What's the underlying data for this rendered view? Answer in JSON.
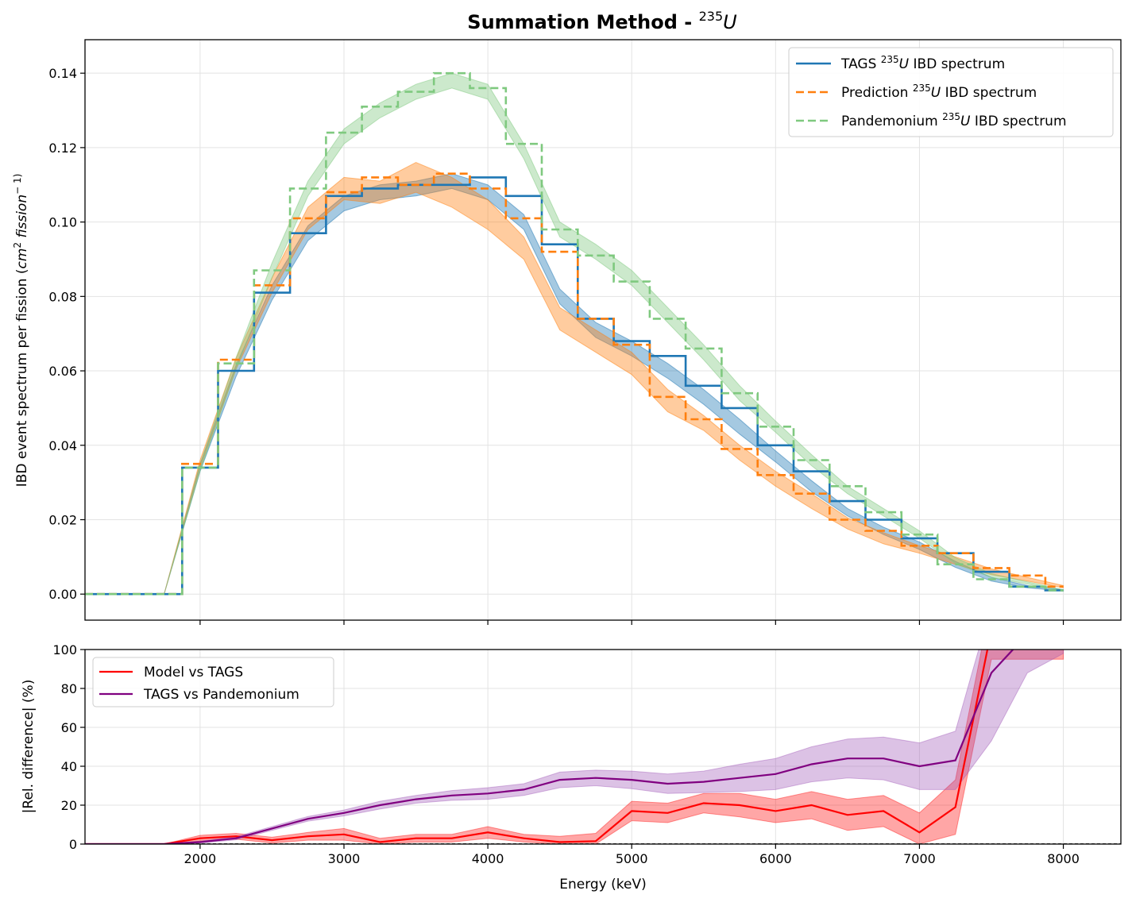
{
  "chart_data": [
    {
      "type": "line",
      "title_text": "Summation Method - ",
      "title_sup": "235",
      "title_sym": "U",
      "xlabel": "",
      "ylabel_pre": "IBD event spectrum per fission (",
      "ylabel_cm": "cm",
      "ylabel_sup": "2",
      "ylabel_fission": " fission",
      "ylabel_end": "− 1)",
      "xlim": [
        1200,
        8400
      ],
      "ylim": [
        -0.007,
        0.149
      ],
      "xticks": [
        2000,
        3000,
        4000,
        5000,
        6000,
        7000,
        8000
      ],
      "yticks": [
        0.0,
        0.02,
        0.04,
        0.06,
        0.08,
        0.1,
        0.12,
        0.14
      ],
      "ytick_labels": [
        "0.00",
        "0.02",
        "0.04",
        "0.06",
        "0.08",
        "0.10",
        "0.12",
        "0.14"
      ],
      "grid": true,
      "legend_position": "top-right",
      "bin_edges": [
        1125,
        1875,
        2125,
        2375,
        2625,
        2875,
        3125,
        3375,
        3625,
        3875,
        4125,
        4375,
        4625,
        4875,
        5125,
        5375,
        5625,
        5875,
        6125,
        6375,
        6625,
        6875,
        7125,
        7375,
        7625,
        7875,
        8000
      ],
      "band_x": [
        1750,
        2000,
        2250,
        2500,
        2750,
        3000,
        3250,
        3500,
        3750,
        4000,
        4250,
        4500,
        4750,
        5000,
        5250,
        5500,
        5750,
        6000,
        6250,
        6500,
        6750,
        7000,
        7250,
        7500,
        7750,
        8000
      ],
      "series": [
        {
          "name_pre": "TAGS ",
          "name_sup": "235",
          "name_sym": "U",
          "name_post": " IBD spectrum",
          "color": "#1f77b4",
          "style": "solid",
          "values": [
            0.0,
            0.034,
            0.06,
            0.081,
            0.097,
            0.107,
            0.109,
            0.11,
            0.11,
            0.112,
            0.107,
            0.094,
            0.074,
            0.068,
            0.064,
            0.056,
            0.05,
            0.04,
            0.033,
            0.025,
            0.02,
            0.015,
            0.011,
            0.006,
            0.002,
            0.001
          ],
          "band_center": [
            0.0,
            0.034,
            0.06,
            0.081,
            0.097,
            0.105,
            0.108,
            0.109,
            0.111,
            0.108,
            0.1,
            0.08,
            0.071,
            0.066,
            0.06,
            0.053,
            0.045,
            0.037,
            0.029,
            0.022,
            0.017,
            0.013,
            0.008,
            0.004,
            0.002,
            0.001
          ],
          "band_err": [
            0.0,
            0.001,
            0.0015,
            0.002,
            0.002,
            0.002,
            0.002,
            0.002,
            0.002,
            0.002,
            0.002,
            0.002,
            0.002,
            0.002,
            0.002,
            0.002,
            0.002,
            0.0015,
            0.0015,
            0.001,
            0.001,
            0.001,
            0.0008,
            0.0005,
            0.0003,
            0.0002
          ]
        },
        {
          "name_pre": "Prediction ",
          "name_sup": "235",
          "name_sym": "U",
          "name_post": " IBD spectrum",
          "color": "#ff7f0e",
          "style": "dashed",
          "values": [
            0.0,
            0.035,
            0.063,
            0.083,
            0.101,
            0.108,
            0.112,
            0.11,
            0.113,
            0.109,
            0.101,
            0.092,
            0.074,
            0.067,
            0.053,
            0.047,
            0.039,
            0.032,
            0.027,
            0.02,
            0.017,
            0.013,
            0.011,
            0.007,
            0.005,
            0.002
          ],
          "band_center": [
            0.0,
            0.035,
            0.062,
            0.083,
            0.101,
            0.109,
            0.108,
            0.112,
            0.108,
            0.102,
            0.093,
            0.074,
            0.068,
            0.062,
            0.052,
            0.046,
            0.038,
            0.031,
            0.025,
            0.019,
            0.015,
            0.012,
            0.009,
            0.006,
            0.004,
            0.002
          ],
          "band_err": [
            0.0,
            0.001,
            0.0015,
            0.002,
            0.003,
            0.003,
            0.003,
            0.004,
            0.004,
            0.004,
            0.003,
            0.003,
            0.003,
            0.003,
            0.003,
            0.002,
            0.002,
            0.002,
            0.002,
            0.0015,
            0.0015,
            0.001,
            0.001,
            0.0008,
            0.0005,
            0.0003
          ]
        },
        {
          "name_pre": "Pandemonium ",
          "name_sup": "235",
          "name_sym": "U",
          "name_post": " IBD spectrum",
          "color": "#7fc97f",
          "style": "dashed",
          "values": [
            0.0,
            0.034,
            0.062,
            0.087,
            0.109,
            0.124,
            0.131,
            0.135,
            0.14,
            0.136,
            0.121,
            0.098,
            0.091,
            0.084,
            0.074,
            0.066,
            0.054,
            0.045,
            0.036,
            0.029,
            0.022,
            0.016,
            0.008,
            0.004,
            0.002,
            0.001
          ],
          "band_center": [
            0.0,
            0.034,
            0.062,
            0.087,
            0.109,
            0.123,
            0.13,
            0.135,
            0.138,
            0.135,
            0.119,
            0.098,
            0.092,
            0.085,
            0.075,
            0.065,
            0.054,
            0.045,
            0.036,
            0.028,
            0.022,
            0.016,
            0.009,
            0.005,
            0.003,
            0.001
          ],
          "band_err": [
            0.0,
            0.001,
            0.0015,
            0.002,
            0.002,
            0.002,
            0.002,
            0.002,
            0.002,
            0.002,
            0.002,
            0.002,
            0.002,
            0.002,
            0.002,
            0.002,
            0.002,
            0.0015,
            0.0015,
            0.001,
            0.001,
            0.001,
            0.0008,
            0.0005,
            0.0003,
            0.0002
          ]
        }
      ]
    },
    {
      "type": "line",
      "xlabel": "Energy (keV)",
      "ylabel": "|Rel. difference| (%)",
      "xlim": [
        1200,
        8400
      ],
      "ylim": [
        0,
        100
      ],
      "xticks": [
        2000,
        3000,
        4000,
        5000,
        6000,
        7000,
        8000
      ],
      "xtick_labels": [
        "2000",
        "3000",
        "4000",
        "5000",
        "6000",
        "7000",
        "8000"
      ],
      "yticks": [
        0,
        20,
        40,
        60,
        80,
        100
      ],
      "ytick_labels": [
        "0",
        "20",
        "40",
        "60",
        "80",
        "100"
      ],
      "grid": true,
      "legend_position": "top-left",
      "x": [
        1125,
        1250,
        1500,
        1750,
        2000,
        2250,
        2500,
        2750,
        3000,
        3250,
        3500,
        3750,
        4000,
        4250,
        4500,
        4750,
        5000,
        5250,
        5500,
        5750,
        6000,
        6250,
        6500,
        6750,
        7000,
        7250,
        7500,
        7750,
        8000
      ],
      "series": [
        {
          "name": "Model vs TAGS",
          "color": "#ff0000",
          "band_color": "#ff0000",
          "values": [
            0,
            0,
            0,
            0,
            3,
            4,
            2,
            4,
            5,
            1,
            3,
            3,
            6,
            3,
            1,
            1.5,
            17,
            16,
            21,
            20,
            17,
            20,
            15,
            17,
            6,
            19,
            110,
            110,
            110
          ],
          "err": [
            0,
            0,
            0,
            0,
            1.5,
            1.5,
            1.5,
            2,
            3,
            2,
            2,
            2,
            3,
            2,
            3,
            4,
            5,
            5,
            5,
            6,
            6,
            7,
            8,
            8,
            10,
            14,
            15,
            15,
            15
          ]
        },
        {
          "name": "TAGS vs Pandemonium",
          "color": "#800080",
          "band_color": "#9a4fb4",
          "values": [
            0,
            0,
            0,
            0,
            1,
            3,
            8,
            13,
            16,
            20,
            23,
            25,
            26,
            28,
            33,
            34,
            33,
            31,
            32,
            34,
            36,
            41,
            44,
            44,
            40,
            43,
            88,
            108,
            108
          ],
          "err": [
            0,
            0,
            0,
            0,
            0.5,
            0.8,
            1,
            1.2,
            1.5,
            2,
            2,
            2.5,
            3,
            3,
            4,
            4,
            4.5,
            5,
            5.5,
            7,
            8,
            9,
            10,
            11,
            12,
            15,
            35,
            20,
            10
          ]
        }
      ]
    }
  ]
}
